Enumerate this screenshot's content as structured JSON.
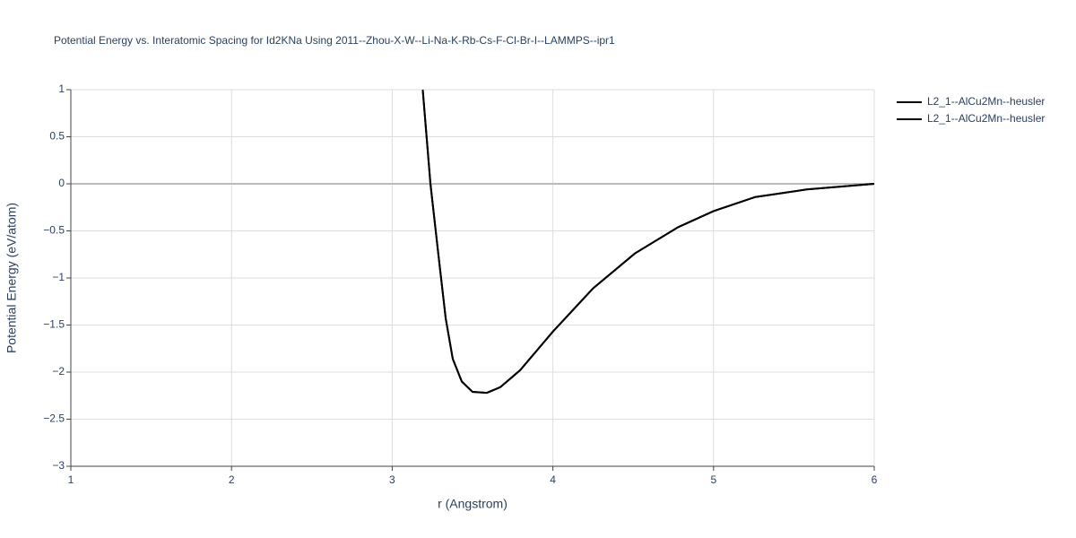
{
  "chart_data": {
    "type": "line",
    "title": "Potential Energy vs. Interatomic Spacing for Id2KNa Using 2011--Zhou-X-W--Li-Na-K-Rb-Cs-F-Cl-Br-I--LAMMPS--ipr1",
    "x_label": "r (Angstrom)",
    "y_label": "Potential Energy (eV/atom)",
    "xlim": [
      1,
      6
    ],
    "xticks": [
      1,
      2,
      3,
      4,
      5,
      6
    ],
    "ylim": [
      -3,
      1
    ],
    "yticks": [
      {
        "value": -3,
        "label": "−3"
      },
      {
        "value": -2.5,
        "label": "−2.5"
      },
      {
        "value": -2,
        "label": "−2"
      },
      {
        "value": -1.5,
        "label": "−1.5"
      },
      {
        "value": -1,
        "label": "−1"
      },
      {
        "value": -0.5,
        "label": "−0.5"
      },
      0,
      0.5,
      1
    ],
    "grid": true,
    "series": [
      {
        "name": "L2_1--AlCu2Mn--heusler",
        "color": "#000000",
        "x": [
          3.19,
          3.238,
          3.288,
          3.333,
          3.377,
          3.433,
          3.5,
          3.589,
          3.673,
          3.796,
          4.0,
          4.25,
          4.51,
          4.78,
          5.0,
          5.26,
          5.58,
          6.0
        ],
        "values": [
          1.0,
          0.0,
          -0.76,
          -1.43,
          -1.86,
          -2.1,
          -2.21,
          -2.22,
          -2.16,
          -1.98,
          -1.57,
          -1.11,
          -0.74,
          -0.46,
          -0.29,
          -0.14,
          -0.06,
          0.0
        ]
      },
      {
        "name": "L2_1--AlCu2Mn--heusler",
        "color": "#000000",
        "x": [
          3.19,
          3.238,
          3.288,
          3.333,
          3.377,
          3.433,
          3.5,
          3.589,
          3.673,
          3.796,
          4.0,
          4.25,
          4.51,
          4.78,
          5.0,
          5.26,
          5.58,
          6.0
        ],
        "values": [
          1.0,
          0.0,
          -0.76,
          -1.43,
          -1.86,
          -2.1,
          -2.21,
          -2.22,
          -2.16,
          -1.98,
          -1.57,
          -1.11,
          -0.74,
          -0.46,
          -0.29,
          -0.14,
          -0.06,
          0.0
        ]
      }
    ]
  }
}
